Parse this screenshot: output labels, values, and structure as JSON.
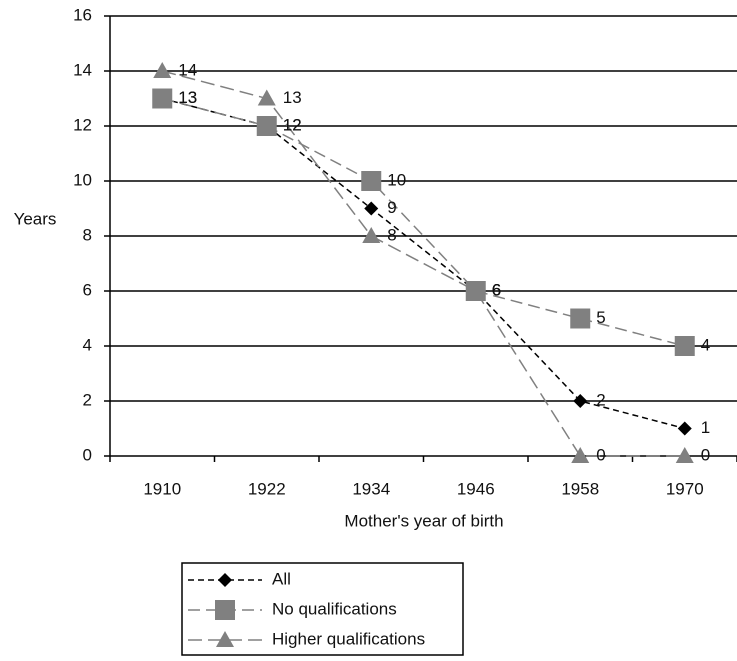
{
  "chart_data": {
    "type": "line",
    "x_label": "Mother's year of birth",
    "y_label": "Years",
    "categories": [
      "1910",
      "1922",
      "1934",
      "1946",
      "1958",
      "1970"
    ],
    "series": [
      {
        "name": "All",
        "color": "#000000",
        "marker": "diamond",
        "dash": "6,4",
        "values": [
          13,
          12,
          9,
          6,
          2,
          1
        ]
      },
      {
        "name": "No qualifications",
        "color": "#808080",
        "marker": "square",
        "dash": "12,6",
        "values": [
          13,
          12,
          10,
          6,
          5,
          4
        ]
      },
      {
        "name": "Higher qualifications",
        "color": "#808080",
        "marker": "triangle",
        "dash": "14,6",
        "values": [
          14,
          13,
          8,
          6,
          0,
          0
        ]
      }
    ],
    "ylim": [
      0,
      16
    ],
    "yticks": [
      0,
      2,
      4,
      6,
      8,
      10,
      12,
      14,
      16
    ],
    "grid": true,
    "legend": "bottom"
  }
}
